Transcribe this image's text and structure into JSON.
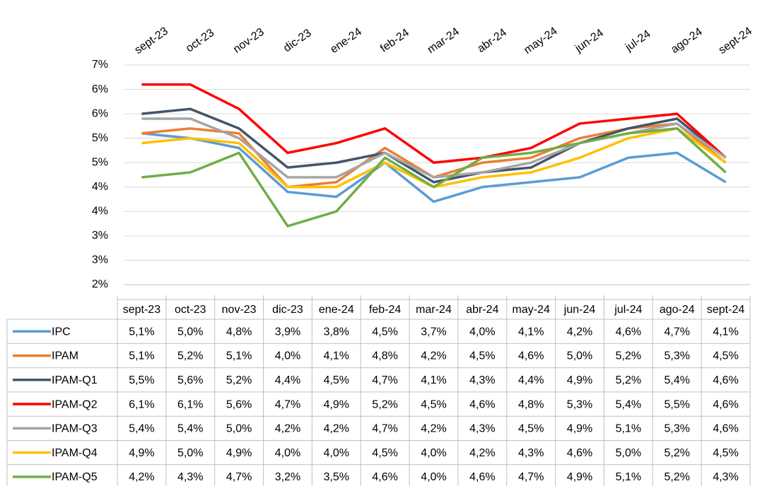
{
  "chart_data": {
    "type": "line",
    "categories": [
      "sept-23",
      "oct-23",
      "nov-23",
      "dic-23",
      "ene-24",
      "feb-24",
      "mar-24",
      "abr-24",
      "may-24",
      "jun-24",
      "jul-24",
      "ago-24",
      "sept-24"
    ],
    "ylim": [
      2.0,
      6.5
    ],
    "yticks": [
      {
        "value": 2.0,
        "label": "2%"
      },
      {
        "value": 2.5,
        "label": "3%"
      },
      {
        "value": 3.0,
        "label": "3%"
      },
      {
        "value": 3.5,
        "label": "4%"
      },
      {
        "value": 4.0,
        "label": "4%"
      },
      {
        "value": 4.5,
        "label": "5%"
      },
      {
        "value": 5.0,
        "label": "5%"
      },
      {
        "value": 5.5,
        "label": "6%"
      },
      {
        "value": 6.0,
        "label": "6%"
      },
      {
        "value": 6.5,
        "label": "7%"
      }
    ],
    "grid": true,
    "series": [
      {
        "name": "IPC",
        "color": "#5b9bd5",
        "values": [
          5.1,
          5.0,
          4.8,
          3.9,
          3.8,
          4.5,
          3.7,
          4.0,
          4.1,
          4.2,
          4.6,
          4.7,
          4.1
        ],
        "value_labels": [
          "5,1%",
          "5,0%",
          "4,8%",
          "3,9%",
          "3,8%",
          "4,5%",
          "3,7%",
          "4,0%",
          "4,1%",
          "4,2%",
          "4,6%",
          "4,7%",
          "4,1%"
        ]
      },
      {
        "name": "IPAM",
        "color": "#ed7d31",
        "values": [
          5.1,
          5.2,
          5.1,
          4.0,
          4.1,
          4.8,
          4.2,
          4.5,
          4.6,
          5.0,
          5.2,
          5.3,
          4.5
        ],
        "value_labels": [
          "5,1%",
          "5,2%",
          "5,1%",
          "4,0%",
          "4,1%",
          "4,8%",
          "4,2%",
          "4,5%",
          "4,6%",
          "5,0%",
          "5,2%",
          "5,3%",
          "4,5%"
        ]
      },
      {
        "name": "IPAM-Q1",
        "color": "#44546a",
        "values": [
          5.5,
          5.6,
          5.2,
          4.4,
          4.5,
          4.7,
          4.1,
          4.3,
          4.4,
          4.9,
          5.2,
          5.4,
          4.6
        ],
        "value_labels": [
          "5,5%",
          "5,6%",
          "5,2%",
          "4,4%",
          "4,5%",
          "4,7%",
          "4,1%",
          "4,3%",
          "4,4%",
          "4,9%",
          "5,2%",
          "5,4%",
          "4,6%"
        ]
      },
      {
        "name": "IPAM-Q2",
        "color": "#ff0000",
        "values": [
          6.1,
          6.1,
          5.6,
          4.7,
          4.9,
          5.2,
          4.5,
          4.6,
          4.8,
          5.3,
          5.4,
          5.5,
          4.6
        ],
        "value_labels": [
          "6,1%",
          "6,1%",
          "5,6%",
          "4,7%",
          "4,9%",
          "5,2%",
          "4,5%",
          "4,6%",
          "4,8%",
          "5,3%",
          "5,4%",
          "5,5%",
          "4,6%"
        ]
      },
      {
        "name": "IPAM-Q3",
        "color": "#a5a5a5",
        "values": [
          5.4,
          5.4,
          5.0,
          4.2,
          4.2,
          4.7,
          4.2,
          4.3,
          4.5,
          4.9,
          5.1,
          5.3,
          4.6
        ],
        "value_labels": [
          "5,4%",
          "5,4%",
          "5,0%",
          "4,2%",
          "4,2%",
          "4,7%",
          "4,2%",
          "4,3%",
          "4,5%",
          "4,9%",
          "5,1%",
          "5,3%",
          "4,6%"
        ]
      },
      {
        "name": "IPAM-Q4",
        "color": "#ffc000",
        "values": [
          4.9,
          5.0,
          4.9,
          4.0,
          4.0,
          4.5,
          4.0,
          4.2,
          4.3,
          4.6,
          5.0,
          5.2,
          4.5
        ],
        "value_labels": [
          "4,9%",
          "5,0%",
          "4,9%",
          "4,0%",
          "4,0%",
          "4,5%",
          "4,0%",
          "4,2%",
          "4,3%",
          "4,6%",
          "5,0%",
          "5,2%",
          "4,5%"
        ]
      },
      {
        "name": "IPAM-Q5",
        "color": "#70ad47",
        "values": [
          4.2,
          4.3,
          4.7,
          3.2,
          3.5,
          4.6,
          4.0,
          4.6,
          4.7,
          4.9,
          5.1,
          5.2,
          4.3
        ],
        "value_labels": [
          "4,2%",
          "4,3%",
          "4,7%",
          "3,2%",
          "3,5%",
          "4,6%",
          "4,0%",
          "4,6%",
          "4,7%",
          "4,9%",
          "5,1%",
          "5,2%",
          "4,3%"
        ]
      }
    ]
  }
}
